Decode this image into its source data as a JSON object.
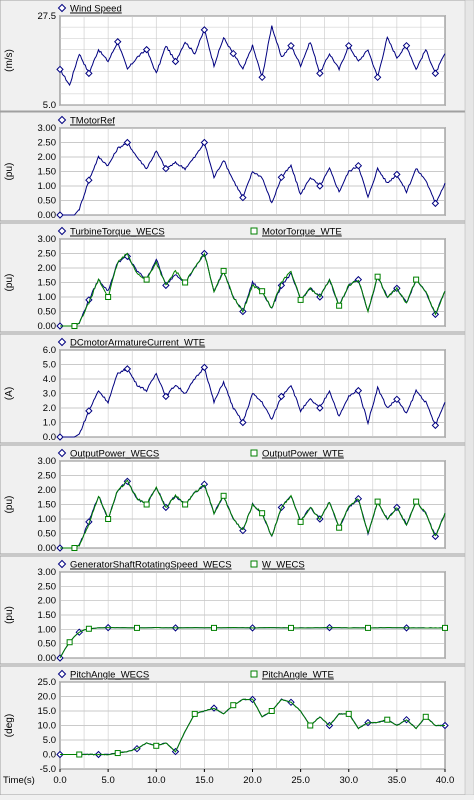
{
  "chart_data": [
    {
      "type": "line",
      "ylabel": "(m/s)",
      "ylim": [
        5.0,
        27.5
      ],
      "yticks": [
        "27.5",
        "5.0"
      ],
      "ytick_values": [
        27.5,
        5.0
      ],
      "grid": true,
      "legend": "top-left",
      "series": [
        {
          "name": "Wind Speed",
          "color": "#000080",
          "marker": "diamond",
          "x": [
            0,
            1,
            2,
            3,
            4,
            5,
            6,
            7,
            8,
            9,
            10,
            11,
            12,
            13,
            14,
            15,
            16,
            17,
            18,
            19,
            20,
            21,
            22,
            23,
            24,
            25,
            26,
            27,
            28,
            29,
            30,
            31,
            32,
            33,
            34,
            35,
            36,
            37,
            38,
            39,
            40
          ],
          "values": [
            14,
            10,
            18,
            13,
            19,
            16,
            21,
            14,
            17,
            19,
            13,
            20,
            16,
            21,
            18,
            24,
            15,
            22,
            18,
            14,
            20,
            12,
            25,
            17,
            20,
            15,
            21,
            13,
            18,
            14,
            20,
            16,
            19,
            12,
            22,
            17,
            20,
            14,
            19,
            13,
            18
          ]
        }
      ]
    },
    {
      "type": "line",
      "ylabel": "(pu)",
      "ylim": [
        0,
        3
      ],
      "yticks": [
        "3.00",
        "2.50",
        "2.00",
        "1.50",
        "1.00",
        "0.50",
        "0.00"
      ],
      "ytick_values": [
        3.0,
        2.5,
        2.0,
        1.5,
        1.0,
        0.5,
        0.0
      ],
      "grid": true,
      "legend": "top-left",
      "series": [
        {
          "name": "TMotorRef",
          "color": "#000080",
          "marker": "diamond",
          "x": [
            0,
            1,
            1.5,
            2,
            3,
            4,
            5,
            6,
            7,
            8,
            9,
            10,
            11,
            12,
            13,
            14,
            15,
            16,
            17,
            18,
            19,
            20,
            21,
            22,
            23,
            24,
            25,
            26,
            27,
            28,
            29,
            30,
            31,
            32,
            33,
            34,
            35,
            36,
            37,
            38,
            39,
            40
          ],
          "values": [
            0,
            0,
            0,
            0.2,
            1.2,
            2.0,
            1.7,
            2.3,
            2.5,
            2.0,
            1.6,
            2.2,
            1.6,
            1.8,
            1.6,
            2.0,
            2.5,
            1.3,
            1.9,
            1.2,
            0.6,
            1.5,
            1.3,
            0.4,
            1.3,
            1.7,
            0.7,
            1.3,
            1.0,
            1.6,
            0.8,
            1.5,
            1.7,
            0.6,
            1.6,
            1.1,
            1.4,
            0.8,
            1.6,
            1.2,
            0.4,
            1.1
          ]
        }
      ]
    },
    {
      "type": "line",
      "ylabel": "(pu)",
      "ylim": [
        0,
        3
      ],
      "yticks": [
        "3.00",
        "2.50",
        "2.00",
        "1.50",
        "1.00",
        "0.50",
        "0.00"
      ],
      "ytick_values": [
        3.0,
        2.5,
        2.0,
        1.5,
        1.0,
        0.5,
        0.0
      ],
      "grid": true,
      "legend": "top",
      "series": [
        {
          "name": "TurbineTorque_WECS",
          "color": "#000080",
          "marker": "diamond",
          "x": [
            0,
            1,
            1.5,
            2,
            3,
            4,
            5,
            6,
            7,
            8,
            9,
            10,
            11,
            12,
            13,
            14,
            15,
            16,
            17,
            18,
            19,
            20,
            21,
            22,
            23,
            24,
            25,
            26,
            27,
            28,
            29,
            30,
            31,
            32,
            33,
            34,
            35,
            36,
            37,
            38,
            39,
            40
          ],
          "values": [
            0,
            0,
            0,
            0.1,
            0.9,
            1.6,
            1.2,
            2.2,
            2.4,
            1.9,
            1.6,
            2.3,
            1.4,
            1.8,
            1.5,
            2.0,
            2.5,
            1.2,
            1.9,
            1.0,
            0.5,
            1.5,
            1.2,
            0.6,
            1.4,
            1.8,
            0.9,
            1.3,
            1.0,
            1.6,
            0.7,
            1.4,
            1.6,
            0.5,
            1.7,
            1.0,
            1.3,
            0.8,
            1.6,
            1.2,
            0.4,
            1.2
          ]
        },
        {
          "name": "MotorTorque_WTE",
          "color": "#008000",
          "marker": "square",
          "x": [
            0,
            1,
            1.5,
            2,
            3,
            4,
            5,
            6,
            7,
            8,
            9,
            10,
            11,
            12,
            13,
            14,
            15,
            16,
            17,
            18,
            19,
            20,
            21,
            22,
            23,
            24,
            25,
            26,
            27,
            28,
            29,
            30,
            31,
            32,
            33,
            34,
            35,
            36,
            37,
            38,
            39,
            40
          ],
          "values": [
            0,
            0,
            0,
            0.1,
            0.8,
            1.6,
            1.0,
            2.2,
            2.5,
            1.8,
            1.6,
            2.2,
            1.4,
            1.9,
            1.5,
            2.0,
            2.5,
            1.2,
            1.9,
            1.0,
            0.5,
            1.4,
            1.2,
            0.6,
            1.5,
            1.9,
            0.9,
            1.3,
            1.0,
            1.6,
            0.7,
            1.4,
            1.6,
            0.5,
            1.7,
            1.0,
            1.3,
            0.8,
            1.6,
            1.2,
            0.4,
            1.2
          ]
        }
      ]
    },
    {
      "type": "line",
      "ylabel": "(A)",
      "ylim": [
        0,
        6
      ],
      "yticks": [
        "6.0",
        "5.0",
        "4.0",
        "3.0",
        "2.0",
        "1.0",
        "0.0"
      ],
      "ytick_values": [
        6,
        5,
        4,
        3,
        2,
        1,
        0
      ],
      "grid": true,
      "legend": "top-left",
      "series": [
        {
          "name": "DCmotorArmatureCurrent_WTE",
          "color": "#000080",
          "marker": "diamond",
          "x": [
            0,
            1,
            1.5,
            2,
            3,
            4,
            5,
            6,
            7,
            8,
            9,
            10,
            11,
            12,
            13,
            14,
            15,
            16,
            17,
            18,
            19,
            20,
            21,
            22,
            23,
            24,
            25,
            26,
            27,
            28,
            29,
            30,
            31,
            32,
            33,
            34,
            35,
            36,
            37,
            38,
            39,
            40
          ],
          "values": [
            0,
            0,
            0,
            0.2,
            1.8,
            3.2,
            2.4,
            4.4,
            4.7,
            3.6,
            3.2,
            4.4,
            2.8,
            3.6,
            3.0,
            4.0,
            4.8,
            2.4,
            3.8,
            2.0,
            1.0,
            3.0,
            2.4,
            1.2,
            2.8,
            3.6,
            1.8,
            2.6,
            2.0,
            3.2,
            1.4,
            2.8,
            3.2,
            1.0,
            3.4,
            2.0,
            2.6,
            1.6,
            3.2,
            2.4,
            0.8,
            2.4
          ]
        }
      ]
    },
    {
      "type": "line",
      "ylabel": "(pu)",
      "ylim": [
        0,
        3
      ],
      "yticks": [
        "3.00",
        "2.50",
        "2.00",
        "1.50",
        "1.00",
        "0.50",
        "0.00"
      ],
      "ytick_values": [
        3.0,
        2.5,
        2.0,
        1.5,
        1.0,
        0.5,
        0.0
      ],
      "grid": true,
      "legend": "top",
      "series": [
        {
          "name": "OutputPower_WECS",
          "color": "#000080",
          "marker": "diamond",
          "x": [
            0,
            1,
            1.5,
            2,
            3,
            4,
            5,
            6,
            7,
            8,
            9,
            10,
            11,
            12,
            13,
            14,
            15,
            16,
            17,
            18,
            19,
            20,
            21,
            22,
            23,
            24,
            25,
            26,
            27,
            28,
            29,
            30,
            31,
            32,
            33,
            34,
            35,
            36,
            37,
            38,
            39,
            40
          ],
          "values": [
            0,
            0,
            0,
            0.1,
            0.9,
            1.8,
            1.0,
            2.0,
            2.3,
            1.7,
            1.5,
            2.1,
            1.4,
            1.8,
            1.5,
            1.9,
            2.2,
            1.2,
            1.8,
            1.0,
            0.6,
            1.5,
            1.2,
            0.4,
            1.4,
            1.8,
            0.9,
            1.4,
            1.0,
            1.6,
            0.7,
            1.4,
            1.7,
            0.5,
            1.6,
            1.0,
            1.4,
            0.8,
            1.6,
            1.2,
            0.4,
            1.2
          ]
        },
        {
          "name": "OutputPower_WTE",
          "color": "#008000",
          "marker": "square",
          "x": [
            0,
            1,
            1.5,
            2,
            3,
            4,
            5,
            6,
            7,
            8,
            9,
            10,
            11,
            12,
            13,
            14,
            15,
            16,
            17,
            18,
            19,
            20,
            21,
            22,
            23,
            24,
            25,
            26,
            27,
            28,
            29,
            30,
            31,
            32,
            33,
            34,
            35,
            36,
            37,
            38,
            39,
            40
          ],
          "values": [
            0,
            0,
            0,
            0.1,
            0.8,
            1.8,
            1.0,
            2.0,
            2.3,
            1.7,
            1.5,
            2.1,
            1.4,
            1.8,
            1.5,
            1.9,
            2.2,
            1.2,
            1.8,
            1.0,
            0.6,
            1.5,
            1.2,
            0.4,
            1.4,
            1.8,
            0.9,
            1.4,
            1.0,
            1.6,
            0.7,
            1.4,
            1.7,
            0.5,
            1.6,
            1.0,
            1.4,
            0.8,
            1.6,
            1.2,
            0.4,
            1.2
          ]
        }
      ]
    },
    {
      "type": "line",
      "ylabel": "(pu)",
      "ylim": [
        0,
        3
      ],
      "yticks": [
        "3.00",
        "2.50",
        "2.00",
        "1.50",
        "1.00",
        "0.50",
        "0.00"
      ],
      "ytick_values": [
        3.0,
        2.5,
        2.0,
        1.5,
        1.0,
        0.5,
        0.0
      ],
      "grid": true,
      "legend": "top",
      "series": [
        {
          "name": "GeneratorShaftRotatingSpeed_WECS",
          "color": "#000080",
          "marker": "diamond",
          "x": [
            0,
            0.5,
            1,
            1.5,
            2,
            2.5,
            3,
            4,
            5,
            6,
            8,
            10,
            12,
            14,
            16,
            18,
            20,
            22,
            24,
            26,
            28,
            30,
            32,
            34,
            36,
            38,
            40
          ],
          "values": [
            0,
            0.3,
            0.55,
            0.75,
            0.9,
            0.98,
            1.02,
            1.05,
            1.06,
            1.06,
            1.05,
            1.06,
            1.05,
            1.06,
            1.05,
            1.06,
            1.05,
            1.06,
            1.05,
            1.05,
            1.06,
            1.05,
            1.05,
            1.06,
            1.05,
            1.05,
            1.05
          ]
        },
        {
          "name": "W_WECS",
          "color": "#008000",
          "marker": "square",
          "x": [
            0,
            0.5,
            1,
            1.5,
            2,
            2.5,
            3,
            4,
            5,
            6,
            8,
            10,
            12,
            14,
            16,
            18,
            20,
            22,
            24,
            26,
            28,
            30,
            32,
            34,
            36,
            38,
            40
          ],
          "values": [
            0,
            0.3,
            0.55,
            0.75,
            0.9,
            0.98,
            1.02,
            1.05,
            1.06,
            1.06,
            1.05,
            1.06,
            1.05,
            1.06,
            1.05,
            1.06,
            1.05,
            1.06,
            1.05,
            1.05,
            1.06,
            1.05,
            1.05,
            1.06,
            1.05,
            1.05,
            1.05
          ]
        }
      ]
    },
    {
      "type": "line",
      "ylabel": "(deg)",
      "xlabel": "Time(s)",
      "ylim": [
        -5,
        25
      ],
      "yticks": [
        "25.0",
        "20.0",
        "15.0",
        "10.0",
        "5.0",
        "0.0",
        "-5.0"
      ],
      "ytick_values": [
        25,
        20,
        15,
        10,
        5,
        0,
        -5
      ],
      "xticks": [
        "0.0",
        "5.0",
        "10.0",
        "15.0",
        "20.0",
        "25.0",
        "30.0",
        "35.0",
        "40.0"
      ],
      "xtick_values": [
        0,
        5,
        10,
        15,
        20,
        25,
        30,
        35,
        40
      ],
      "xlim": [
        0,
        40
      ],
      "grid": true,
      "legend": "top",
      "series": [
        {
          "name": "PitchAngle_WECS",
          "color": "#000080",
          "marker": "diamond",
          "x": [
            0,
            1,
            2,
            3,
            4,
            5,
            6,
            7,
            8,
            9,
            10,
            11,
            12,
            13,
            14,
            15,
            16,
            17,
            18,
            19,
            20,
            21,
            22,
            23,
            24,
            25,
            26,
            27,
            28,
            29,
            30,
            31,
            32,
            33,
            34,
            35,
            36,
            37,
            38,
            39,
            40
          ],
          "values": [
            0,
            0,
            0,
            0,
            0,
            0,
            0.5,
            1,
            2,
            4,
            3,
            4,
            1,
            8,
            14,
            15,
            16,
            14,
            17,
            19,
            19,
            13,
            15,
            19,
            18,
            15,
            10,
            13,
            10,
            14,
            14,
            9,
            11,
            11,
            12,
            10,
            12,
            9,
            13,
            10,
            10
          ]
        },
        {
          "name": "PitchAngle_WTE",
          "color": "#008000",
          "marker": "square",
          "x": [
            0,
            1,
            2,
            3,
            4,
            5,
            6,
            7,
            8,
            9,
            10,
            11,
            12,
            13,
            14,
            15,
            16,
            17,
            18,
            19,
            20,
            21,
            22,
            23,
            24,
            25,
            26,
            27,
            28,
            29,
            30,
            31,
            32,
            33,
            34,
            35,
            36,
            37,
            38,
            39,
            40
          ],
          "values": [
            0,
            0,
            0,
            0,
            0,
            0,
            0.5,
            1,
            2,
            4,
            3,
            4,
            1,
            8,
            14,
            15,
            16,
            14,
            17,
            19,
            19,
            13,
            15,
            19,
            18,
            15,
            10,
            13,
            10,
            14,
            14,
            9,
            11,
            11,
            12,
            10,
            12,
            9,
            13,
            10,
            10
          ]
        }
      ]
    }
  ]
}
